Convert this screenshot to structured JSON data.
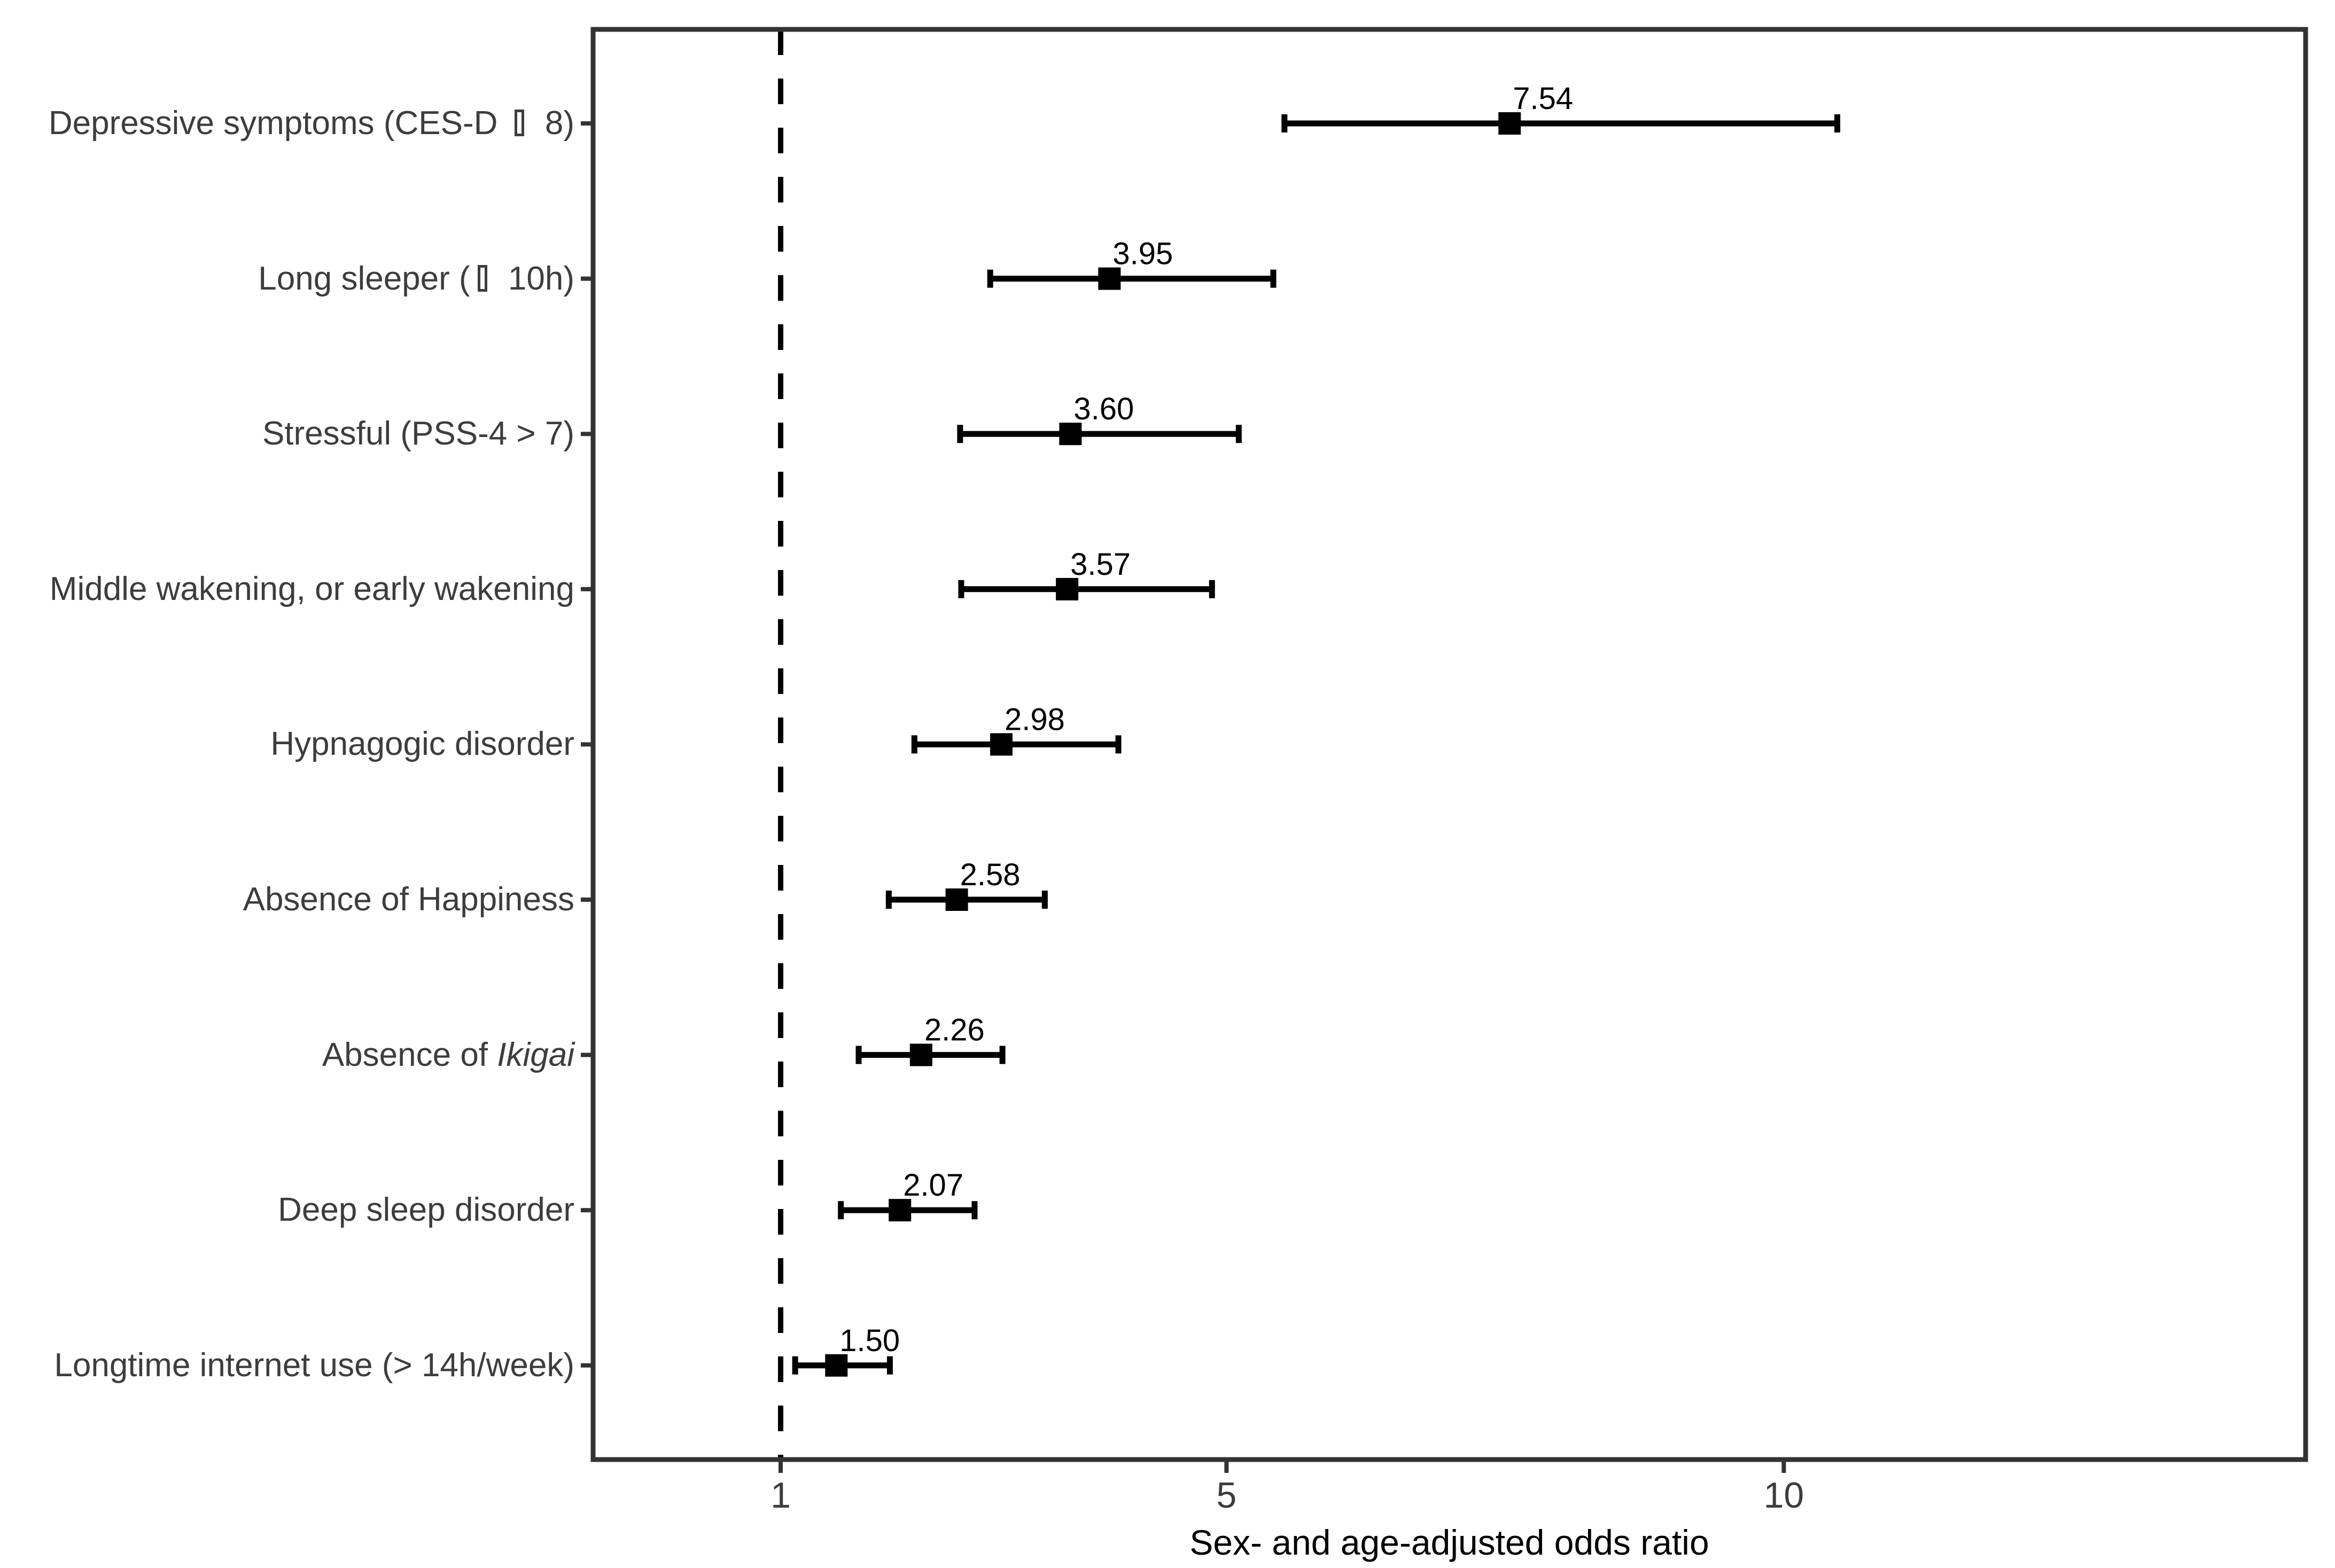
{
  "figure": {
    "background": "#ffffff",
    "panel_border_color": "#333333",
    "axis_text_color": "#3d3d3d",
    "data_color": "#000000"
  },
  "chart_data": {
    "type": "scatter",
    "subtype": "forest-plot",
    "title": "",
    "xlabel": "Sex- and age-adjusted odds ratio",
    "ylabel": "",
    "x_scale": "linear",
    "x_ticks": [
      1,
      5,
      10
    ],
    "x_tick_labels": [
      "1",
      "5",
      "10"
    ],
    "x_range": [
      -0.68,
      14.68
    ],
    "reference_line_x": 1,
    "grid": false,
    "legend": false,
    "rows": [
      {
        "parts": [
          {
            "text": "Depressive symptoms (CES-D "
          },
          {
            "box": true
          },
          {
            "text": " 8)"
          }
        ],
        "or": 7.54,
        "or_label": "7.54",
        "ci_low": 5.52,
        "ci_high": 10.48
      },
      {
        "parts": [
          {
            "text": "Long sleeper ("
          },
          {
            "box": true
          },
          {
            "text": " 10h)"
          }
        ],
        "or": 3.95,
        "or_label": "3.95",
        "ci_low": 2.88,
        "ci_high": 5.42
      },
      {
        "parts": [
          {
            "text": "Stressful (PSS-4 > 7)"
          }
        ],
        "or": 3.6,
        "or_label": "3.60",
        "ci_low": 2.61,
        "ci_high": 5.11
      },
      {
        "parts": [
          {
            "text": "Middle wakening, or early wakening"
          }
        ],
        "or": 3.57,
        "or_label": "3.57",
        "ci_low": 2.62,
        "ci_high": 4.87
      },
      {
        "parts": [
          {
            "text": "Hypnagogic disorder"
          }
        ],
        "or": 2.98,
        "or_label": "2.98",
        "ci_low": 2.2,
        "ci_high": 4.03
      },
      {
        "parts": [
          {
            "text": "Absence of Happiness"
          }
        ],
        "or": 2.58,
        "or_label": "2.58",
        "ci_low": 1.97,
        "ci_high": 3.37
      },
      {
        "parts": [
          {
            "text": "Absence of "
          },
          {
            "text": "Ikigai",
            "italic": true
          }
        ],
        "or": 2.26,
        "or_label": "2.26",
        "ci_low": 1.7,
        "ci_high": 2.99
      },
      {
        "parts": [
          {
            "text": "Deep sleep disorder"
          }
        ],
        "or": 2.07,
        "or_label": "2.07",
        "ci_low": 1.54,
        "ci_high": 2.74
      },
      {
        "parts": [
          {
            "text": "Longtime internet use (> 14h/week)"
          }
        ],
        "or": 1.5,
        "or_label": "1.50",
        "ci_low": 1.13,
        "ci_high": 1.98
      }
    ]
  }
}
